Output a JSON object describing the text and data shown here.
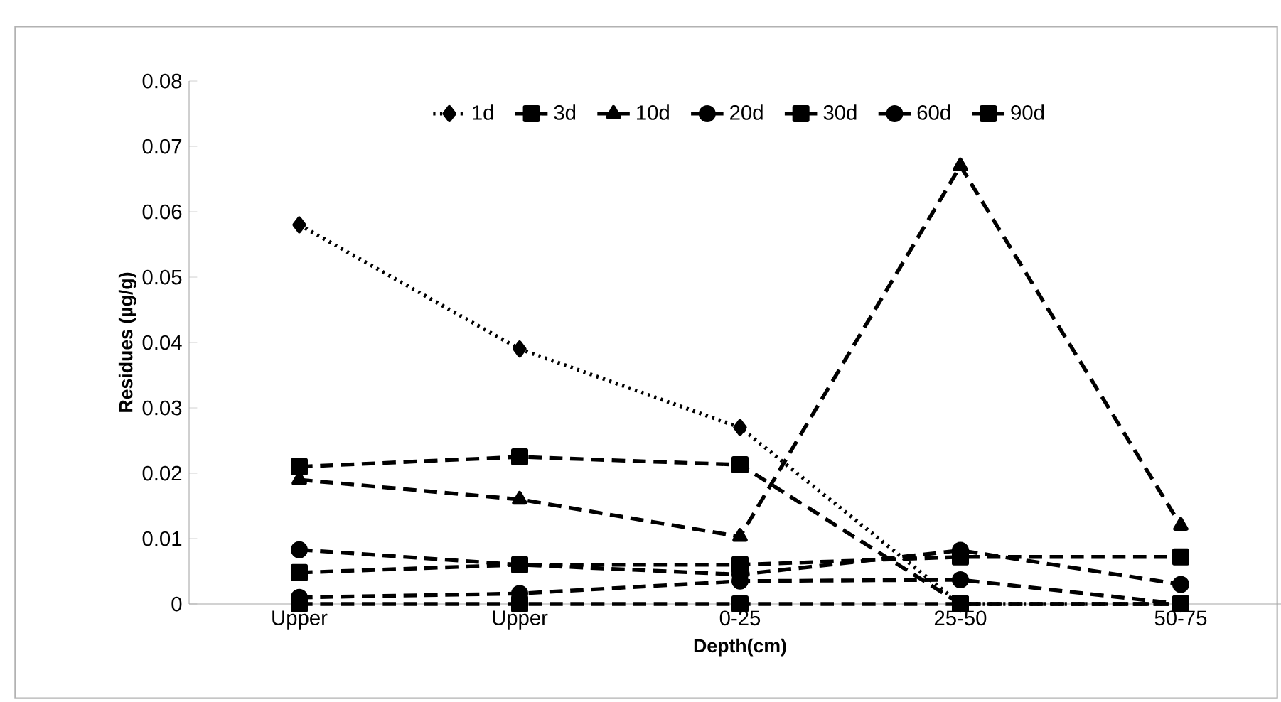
{
  "chart_data": {
    "type": "line",
    "xlabel": "Depth(cm)",
    "ylabel": "Residues (µg/g)",
    "categories": [
      "Upper",
      "Upper",
      "0-25",
      "25-50",
      "50-75"
    ],
    "ylim": [
      0,
      0.08
    ],
    "yticks": [
      0,
      0.01,
      0.02,
      0.03,
      0.04,
      0.05,
      0.06,
      0.07,
      0.08
    ],
    "legend": "top",
    "grid": false,
    "series": [
      {
        "name": "1d",
        "color": "#000000",
        "marker": "diamond",
        "line_style": "dotted",
        "values": [
          0.058,
          0.039,
          0.027,
          0,
          0
        ]
      },
      {
        "name": "3d",
        "color": "#000000",
        "marker": "square",
        "line_style": "dashed",
        "values": [
          0.021,
          0.0225,
          0.0213,
          0,
          0
        ]
      },
      {
        "name": "10d",
        "color": "#000000",
        "marker": "triangle",
        "line_style": "dashed",
        "values": [
          0.019,
          0.016,
          0.0103,
          0.067,
          0.012
        ]
      },
      {
        "name": "20d",
        "color": "#000000",
        "marker": "circle",
        "line_style": "dashed",
        "values": [
          0.0083,
          0.006,
          0.0045,
          0.0082,
          0.003
        ]
      },
      {
        "name": "30d",
        "color": "#000000",
        "marker": "square",
        "line_style": "dashed",
        "values": [
          0.0048,
          0.006,
          0.006,
          0.0072,
          0.0072
        ]
      },
      {
        "name": "60d",
        "color": "#000000",
        "marker": "circle",
        "line_style": "dashed",
        "values": [
          0.001,
          0.0016,
          0.0035,
          0.0037,
          0
        ]
      },
      {
        "name": "90d",
        "color": "#000000",
        "marker": "square",
        "line_style": "dashed",
        "values": [
          0,
          0,
          0,
          0,
          0
        ]
      }
    ]
  }
}
